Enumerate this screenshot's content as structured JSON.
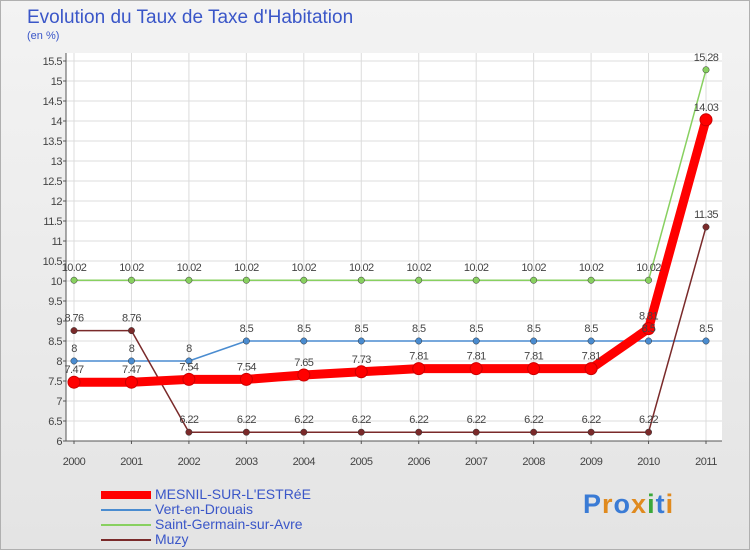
{
  "chart_data": {
    "type": "line",
    "title": "Evolution du Taux de Taxe d'Habitation",
    "ylabel": "(en %)",
    "xlabel": "",
    "x": [
      "2000",
      "2001",
      "2002",
      "2003",
      "2004",
      "2005",
      "2006",
      "2007",
      "2008",
      "2009",
      "2010",
      "2011"
    ],
    "ylim": [
      6,
      15.5
    ],
    "yticks": [
      "6",
      "6.5",
      "7",
      "7.5",
      "8",
      "8.5",
      "9",
      "9.5",
      "10",
      "10.5",
      "11",
      "11.5",
      "12",
      "12.5",
      "13",
      "13.5",
      "14",
      "14.5",
      "15",
      "15.5"
    ],
    "grid": true,
    "series": [
      {
        "name": "MESNIL-SUR-L'ESTRéE",
        "color": "#ff0000",
        "values": [
          7.47,
          7.47,
          7.54,
          7.54,
          7.65,
          7.73,
          7.81,
          7.81,
          7.81,
          7.81,
          8.81,
          14.03
        ],
        "labels": [
          "7.47",
          "7.47",
          "7.54",
          "7.54",
          "7.65",
          "7.73",
          "7.81",
          "7.81",
          "7.81",
          "7.81",
          "8.81",
          "14.03"
        ]
      },
      {
        "name": "Vert-en-Drouais",
        "color": "#4a8cd0",
        "values": [
          8,
          8,
          8,
          8.5,
          8.5,
          8.5,
          8.5,
          8.5,
          8.5,
          8.5,
          8.5,
          8.5
        ],
        "labels": [
          "8",
          "8",
          "8",
          "8.5",
          "8.5",
          "8.5",
          "8.5",
          "8.5",
          "8.5",
          "8.5",
          "8.5",
          "8.5"
        ]
      },
      {
        "name": "Saint-Germain-sur-Avre",
        "color": "#88d060",
        "values": [
          10.02,
          10.02,
          10.02,
          10.02,
          10.02,
          10.02,
          10.02,
          10.02,
          10.02,
          10.02,
          10.02,
          15.28
        ],
        "labels": [
          "10.02",
          "10.02",
          "10.02",
          "10.02",
          "10.02",
          "10.02",
          "10.02",
          "10.02",
          "10.02",
          "10.02",
          "10.02",
          "15.28"
        ]
      },
      {
        "name": "Muzy",
        "color": "#7a2a2a",
        "values": [
          8.76,
          8.76,
          6.22,
          6.22,
          6.22,
          6.22,
          6.22,
          6.22,
          6.22,
          6.22,
          6.22,
          11.35
        ],
        "labels": [
          "8.76",
          "8.76",
          "6.22",
          "6.22",
          "6.22",
          "6.22",
          "6.22",
          "6.22",
          "6.22",
          "6.22",
          "6.22",
          "11.35"
        ]
      }
    ],
    "legend": "bottom-left"
  },
  "logo": {
    "text": "Proxiti"
  }
}
